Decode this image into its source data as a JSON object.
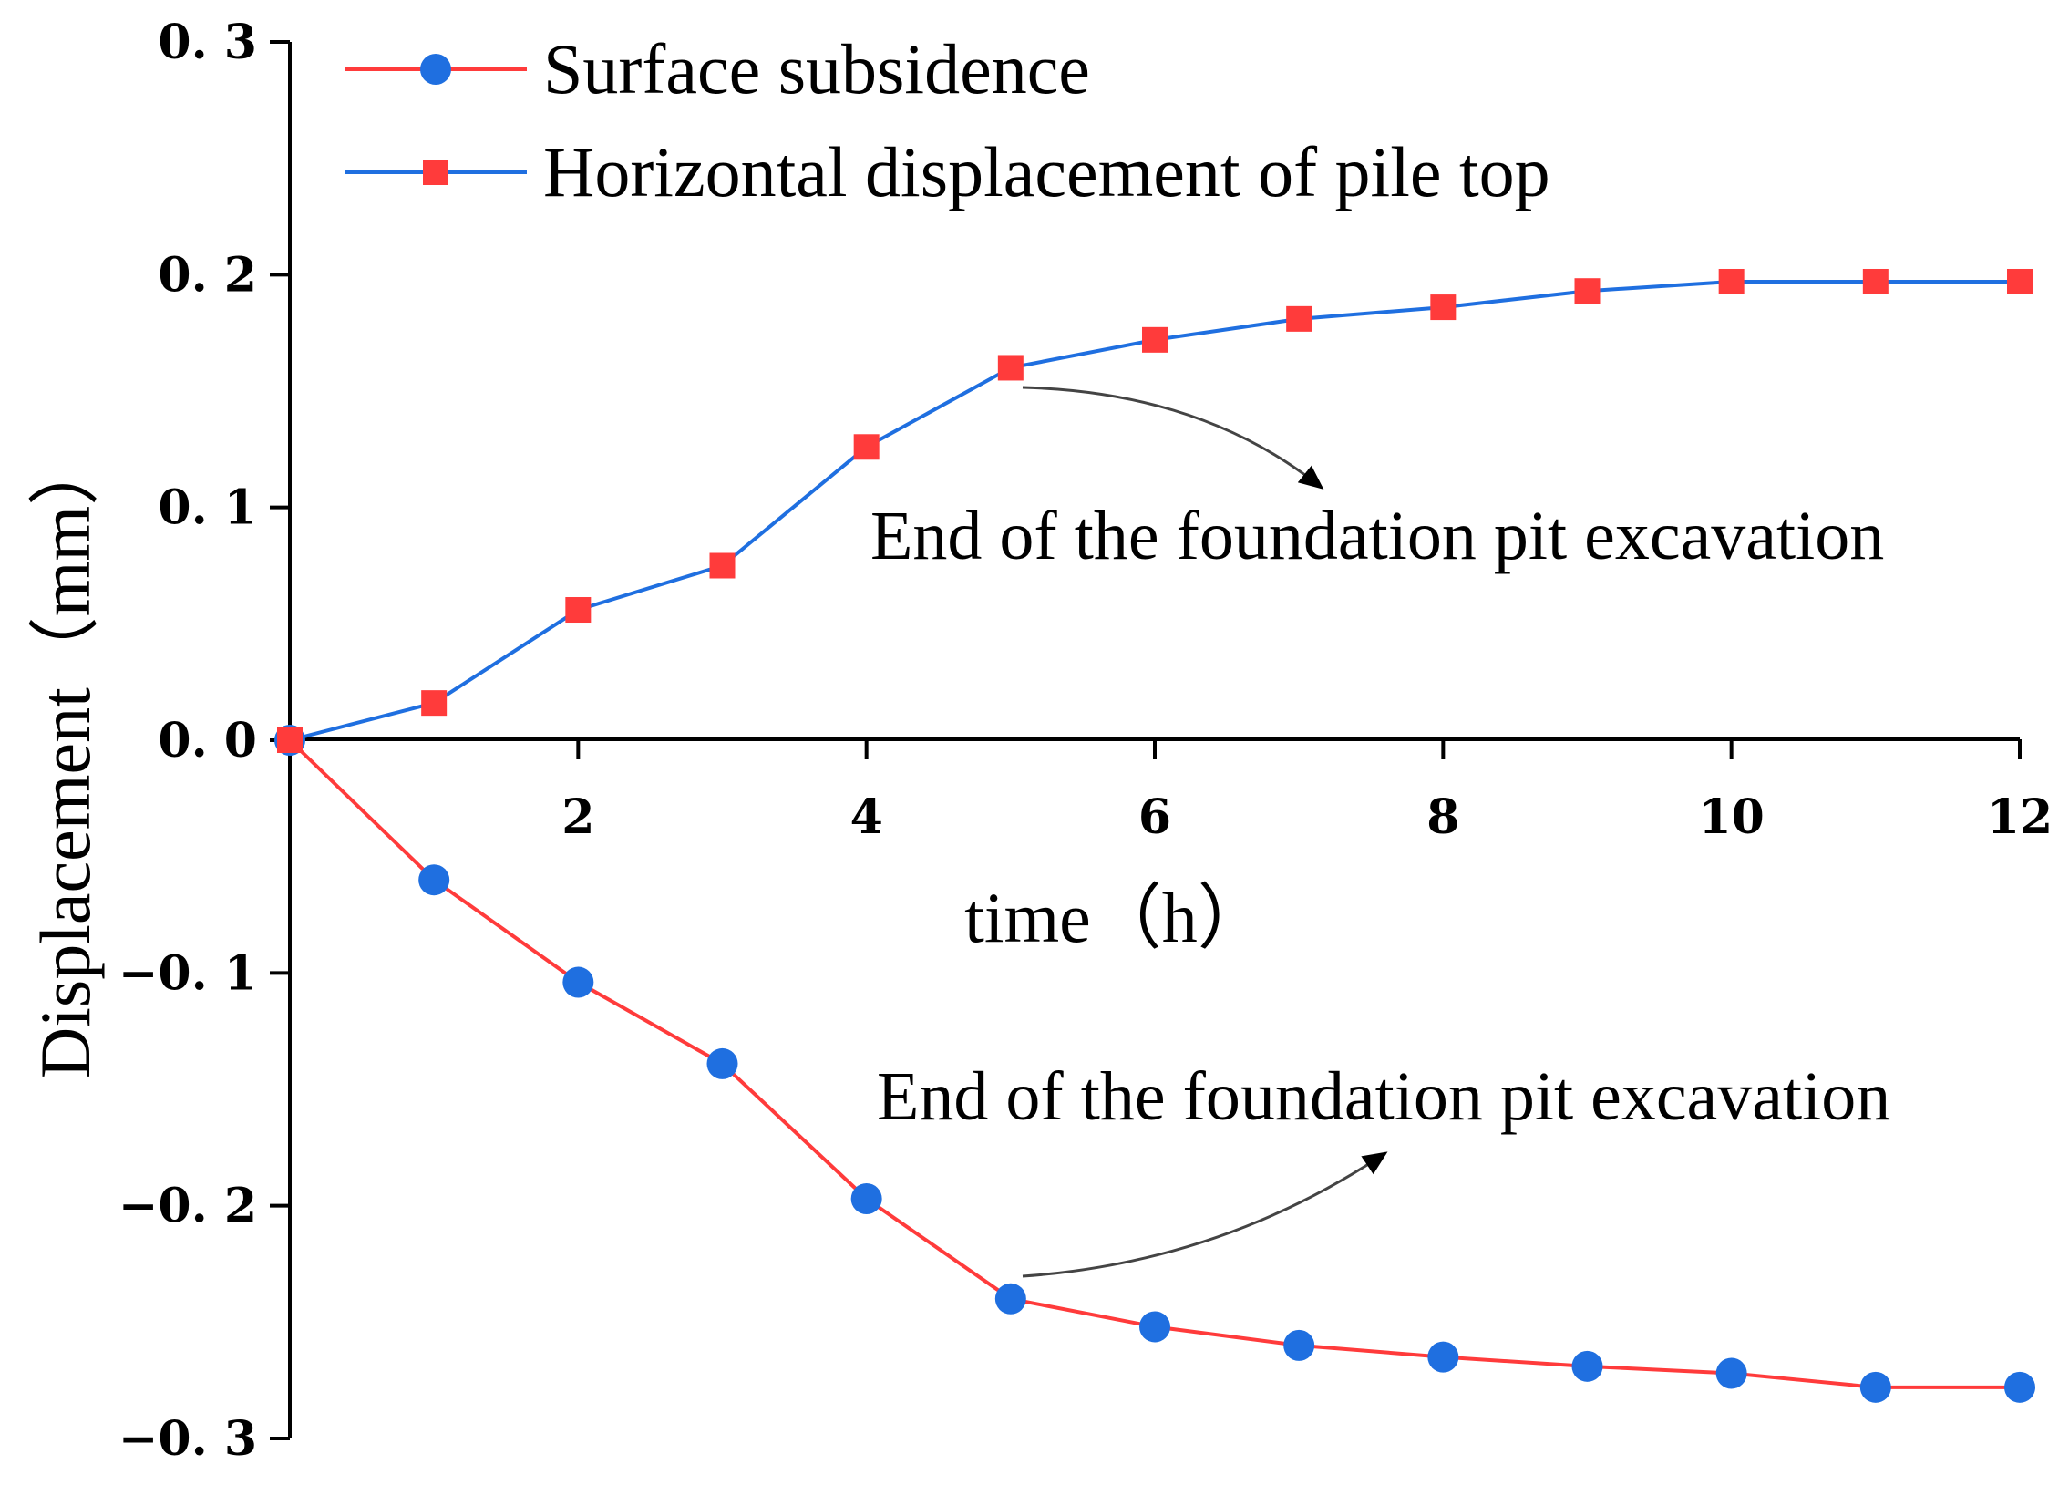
{
  "chart_data": {
    "type": "line",
    "title": "",
    "xlabel": "time（h）",
    "ylabel": "Displacement（mm）",
    "xlim": [
      0,
      12
    ],
    "ylim": [
      -0.3,
      0.3
    ],
    "x_ticks": [
      2,
      4,
      6,
      8,
      10,
      12
    ],
    "x_tick_labels": [
      "2",
      "4",
      "6",
      "8",
      "10",
      "12"
    ],
    "y_ticks": [
      0.3,
      0.2,
      0.1,
      0.0,
      -0.1,
      -0.2,
      -0.3
    ],
    "y_tick_labels": [
      "0. 3",
      "0. 2",
      "0. 1",
      "0. 0",
      "−0. 1",
      "−0. 2",
      "−0. 3"
    ],
    "x": [
      0,
      1,
      2,
      3,
      4,
      5,
      6,
      7,
      8,
      9,
      10,
      11,
      12
    ],
    "series": [
      {
        "name": "Surface subsidence",
        "line_color": "#ff3b3b",
        "marker": "circle",
        "marker_color": "#1f6fe0",
        "values": [
          0.0,
          -0.06,
          -0.104,
          -0.139,
          -0.197,
          -0.24,
          -0.252,
          -0.26,
          -0.265,
          -0.269,
          -0.272,
          -0.278,
          -0.278
        ]
      },
      {
        "name": "Horizontal displacement of pile top",
        "line_color": "#1f6fe0",
        "marker": "square",
        "marker_color": "#ff3b3b",
        "values": [
          0.0,
          0.016,
          0.056,
          0.075,
          0.126,
          0.16,
          0.172,
          0.181,
          0.186,
          0.193,
          0.197,
          0.197,
          0.197
        ]
      }
    ],
    "legend_position": "top-left",
    "annotations": [
      {
        "text": "End of the foundation pit excavation",
        "series": "Horizontal displacement of pile top",
        "x": 5,
        "y": 0.16
      },
      {
        "text": "End of the foundation pit excavation",
        "series": "Surface subsidence",
        "x": 5,
        "y": -0.24
      }
    ]
  }
}
